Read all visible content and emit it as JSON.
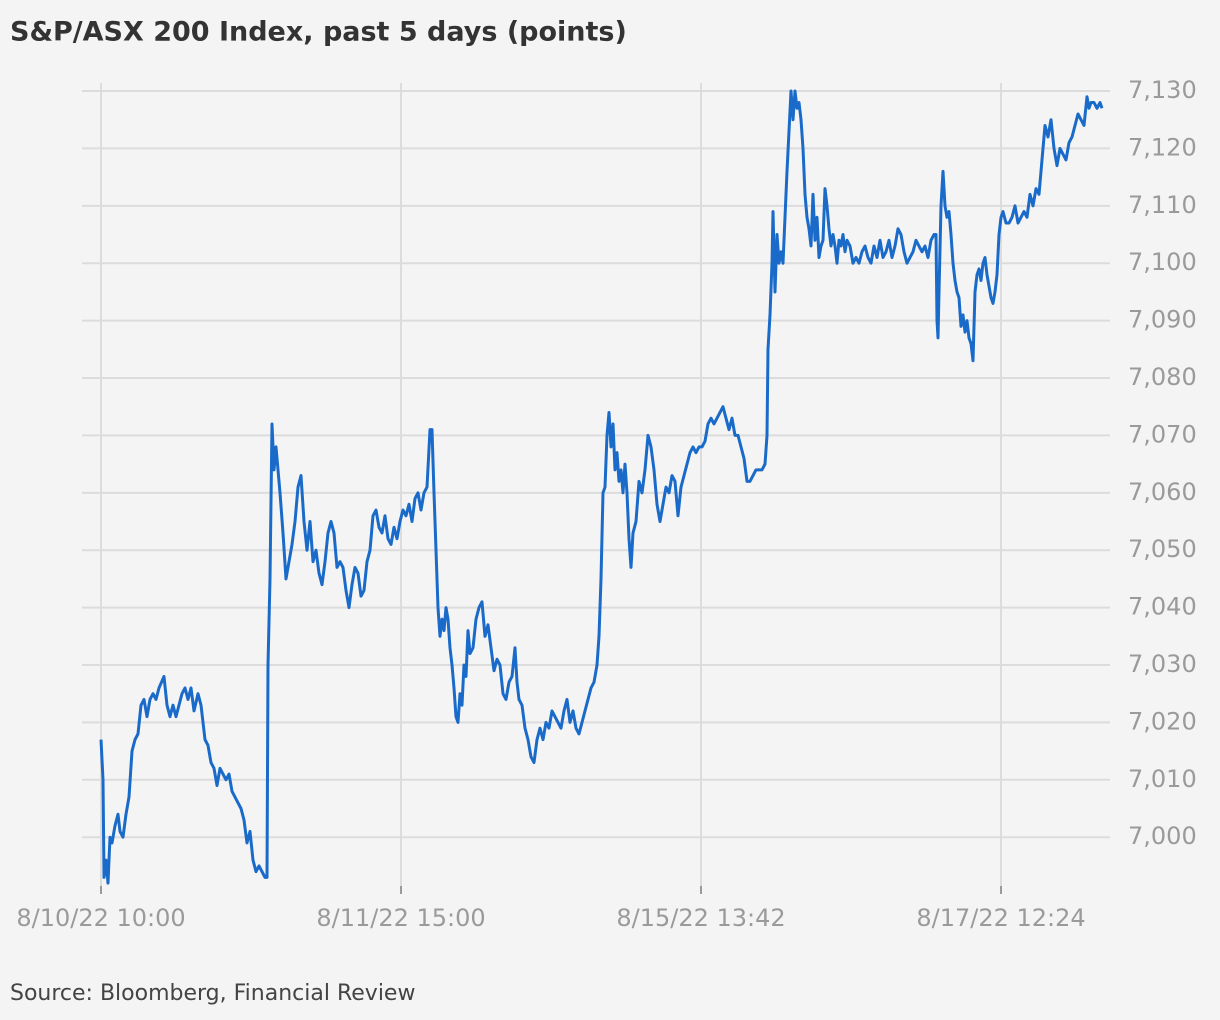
{
  "chart_data": {
    "type": "line",
    "title": "S&P/ASX 200 Index, past 5 days (points)",
    "source": "Source: Bloomberg, Financial Review",
    "color": "#1a6bc9",
    "grid": true,
    "x": [
      0,
      2,
      3,
      5,
      7,
      9,
      11,
      14,
      17,
      19,
      22,
      25,
      28,
      31,
      34,
      37,
      40,
      43,
      46,
      49,
      52,
      55,
      58,
      63,
      66,
      69,
      72,
      75,
      78,
      81,
      84,
      87,
      90,
      93,
      97,
      100,
      104,
      107,
      110,
      113,
      116,
      119,
      122,
      125,
      128,
      131,
      134,
      137,
      140,
      143,
      146,
      149,
      152,
      155,
      158,
      161,
      164,
      166,
      167,
      169,
      171,
      173,
      175,
      177,
      179,
      182,
      185,
      188,
      191,
      194,
      197,
      200,
      203,
      206,
      209,
      212,
      215,
      218,
      221,
      224,
      227,
      230,
      233,
      236,
      239,
      242,
      245,
      248,
      251,
      254,
      257,
      260,
      263,
      266,
      269,
      272,
      275,
      278,
      281,
      284,
      287,
      290,
      293,
      296,
      299,
      302,
      305,
      308,
      311,
      314,
      317,
      320,
      323,
      326,
      329,
      331,
      333,
      335,
      337,
      339,
      341,
      343,
      345,
      347,
      349,
      351,
      353,
      355,
      357,
      359,
      361,
      363,
      365,
      367,
      369,
      372,
      375,
      378,
      381,
      384,
      387,
      390,
      393,
      396,
      399,
      402,
      405,
      408,
      411,
      414,
      416,
      418,
      421,
      424,
      427,
      430,
      433,
      436,
      439,
      442,
      445,
      448,
      451,
      454,
      457,
      460,
      463,
      466,
      469,
      472,
      475,
      478,
      481,
      484,
      487,
      490,
      493,
      496,
      498,
      500,
      502,
      504,
      506,
      508,
      510,
      512,
      514,
      516,
      518,
      520,
      522,
      524,
      526,
      528,
      530,
      532,
      535,
      538,
      541,
      544,
      547,
      550,
      553,
      556,
      559,
      562,
      565,
      568,
      571,
      574,
      577,
      580,
      583,
      586,
      589,
      592,
      595,
      598,
      601,
      604,
      607,
      610,
      613,
      616,
      619,
      622,
      625,
      628,
      631,
      634,
      637,
      640,
      643,
      646,
      649,
      652,
      655,
      658,
      661,
      664,
      666,
      667,
      669,
      671,
      672,
      674,
      676,
      678,
      680,
      682,
      684,
      686,
      688,
      690,
      692,
      694,
      696,
      698,
      700,
      702,
      704,
      706,
      708,
      710,
      712,
      714,
      716,
      718,
      720,
      722,
      724,
      726,
      728,
      730,
      732,
      734,
      736,
      738,
      740,
      742,
      744,
      746,
      749,
      752,
      755,
      758,
      761,
      764,
      767,
      770,
      773,
      776,
      779,
      782,
      785,
      788,
      791,
      794,
      797,
      800,
      803,
      806,
      809,
      812,
      815,
      818,
      821,
      824,
      827,
      830,
      833,
      835,
      836,
      837,
      838,
      840,
      842,
      844,
      846,
      848,
      850,
      852,
      854,
      856,
      858,
      860,
      862,
      864,
      866,
      868,
      870,
      872,
      874,
      876,
      878,
      880,
      882,
      884,
      886,
      888,
      890,
      892,
      894,
      896,
      898,
      900,
      902,
      905,
      908,
      911,
      914,
      917,
      920,
      923,
      926,
      929,
      932,
      935,
      938,
      941,
      944,
      947,
      950,
      953,
      956,
      959,
      962,
      965,
      968,
      971,
      974,
      977,
      980,
      983,
      986,
      988,
      990,
      993,
      996,
      999,
      1001
    ],
    "values": [
      7017,
      7010,
      6993,
      6996,
      6992,
      7000,
      6999,
      7002,
      7004,
      7001,
      7000,
      7004,
      7007,
      7015,
      7017,
      7018,
      7023,
      7024,
      7021,
      7024,
      7025,
      7024,
      7026,
      7028,
      7023,
      7021,
      7023,
      7021,
      7023,
      7025,
      7026,
      7024,
      7026,
      7022,
      7025,
      7023,
      7017,
      7016,
      7013,
      7012,
      7009,
      7012,
      7011,
      7010,
      7011,
      7008,
      7007,
      7006,
      7005,
      7003,
      6999,
      7001,
      6996,
      6994,
      6995,
      6994,
      6993,
      6993,
      7030,
      7045,
      7072,
      7064,
      7068,
      7064,
      7060,
      7053,
      7045,
      7048,
      7051,
      7055,
      7061,
      7063,
      7055,
      7050,
      7055,
      7048,
      7050,
      7046,
      7044,
      7048,
      7053,
      7055,
      7053,
      7047,
      7048,
      7047,
      7043,
      7040,
      7044,
      7047,
      7046,
      7042,
      7043,
      7048,
      7050,
      7056,
      7057,
      7054,
      7053,
      7056,
      7052,
      7051,
      7054,
      7052,
      7055,
      7057,
      7056,
      7058,
      7055,
      7059,
      7060,
      7057,
      7060,
      7061,
      7071,
      7071,
      7060,
      7050,
      7040,
      7035,
      7038,
      7036,
      7040,
      7038,
      7033,
      7030,
      7026,
      7021,
      7020,
      7025,
      7023,
      7030,
      7028,
      7036,
      7032,
      7033,
      7038,
      7040,
      7041,
      7035,
      7037,
      7033,
      7029,
      7031,
      7030,
      7025,
      7024,
      7027,
      7028,
      7033,
      7027,
      7024,
      7023,
      7019,
      7017,
      7014,
      7013,
      7017,
      7019,
      7017,
      7020,
      7019,
      7022,
      7021,
      7020,
      7019,
      7022,
      7024,
      7020,
      7022,
      7019,
      7018,
      7020,
      7022,
      7024,
      7026,
      7027,
      7030,
      7035,
      7045,
      7060,
      7061,
      7070,
      7074,
      7068,
      7072,
      7064,
      7067,
      7062,
      7064,
      7060,
      7065,
      7060,
      7052,
      7047,
      7053,
      7055,
      7062,
      7060,
      7064,
      7070,
      7068,
      7064,
      7058,
      7055,
      7058,
      7061,
      7060,
      7063,
      7062,
      7056,
      7061,
      7063,
      7065,
      7067,
      7068,
      7067,
      7068,
      7068,
      7069,
      7072,
      7073,
      7072,
      7073,
      7074,
      7075,
      7073,
      7071,
      7073,
      7070,
      7070,
      7068,
      7066,
      7062,
      7062,
      7063,
      7064,
      7064,
      7064,
      7065,
      7070,
      7085,
      7091,
      7100,
      7109,
      7095,
      7105,
      7100,
      7102,
      7100,
      7108,
      7116,
      7123,
      7130,
      7125,
      7130,
      7127,
      7128,
      7125,
      7120,
      7112,
      7108,
      7106,
      7103,
      7112,
      7104,
      7108,
      7101,
      7103,
      7104,
      7113,
      7110,
      7106,
      7103,
      7105,
      7103,
      7100,
      7104,
      7103,
      7105,
      7102,
      7104,
      7103,
      7100,
      7101,
      7100,
      7102,
      7103,
      7101,
      7100,
      7103,
      7101,
      7104,
      7101,
      7102,
      7104,
      7101,
      7103,
      7106,
      7105,
      7102,
      7100,
      7101,
      7102,
      7104,
      7103,
      7102,
      7103,
      7101,
      7104,
      7105,
      7105,
      7090,
      7087,
      7095,
      7110,
      7116,
      7110,
      7108,
      7109,
      7105,
      7100,
      7097,
      7095,
      7094,
      7089,
      7091,
      7088,
      7090,
      7087,
      7086,
      7083,
      7095,
      7098,
      7099,
      7097,
      7100,
      7101,
      7098,
      7096,
      7094,
      7093,
      7095,
      7098,
      7105,
      7108,
      7109,
      7107,
      7107,
      7108,
      7110,
      7107,
      7108,
      7109,
      7108,
      7112,
      7110,
      7113,
      7112,
      7118,
      7124,
      7122,
      7125,
      7120,
      7117,
      7120,
      7119,
      7118,
      7121,
      7122,
      7124,
      7126,
      7125,
      7124,
      7129,
      7127,
      7128,
      7128,
      7127,
      7128,
      7127
    ],
    "xlim": [
      -19,
      1009
    ],
    "xticks": [
      {
        "value": 0,
        "label": "8/10/22 10:00"
      },
      {
        "value": 300,
        "label": "8/11/22 15:00"
      },
      {
        "value": 600,
        "label": "8/15/22 13:42"
      },
      {
        "value": 900,
        "label": "8/17/22 12:24"
      }
    ],
    "ylim": [
      6990.8,
      7131.4
    ],
    "yticks": [
      {
        "value": 7000,
        "label": "7,000"
      },
      {
        "value": 7010,
        "label": "7,010"
      },
      {
        "value": 7020,
        "label": "7,020"
      },
      {
        "value": 7030,
        "label": "7,030"
      },
      {
        "value": 7040,
        "label": "7,040"
      },
      {
        "value": 7050,
        "label": "7,050"
      },
      {
        "value": 7060,
        "label": "7,060"
      },
      {
        "value": 7070,
        "label": "7,070"
      },
      {
        "value": 7080,
        "label": "7,080"
      },
      {
        "value": 7090,
        "label": "7,090"
      },
      {
        "value": 7100,
        "label": "7,100"
      },
      {
        "value": 7110,
        "label": "7,110"
      },
      {
        "value": 7120,
        "label": "7,120"
      },
      {
        "value": 7130,
        "label": "7,130"
      }
    ]
  }
}
